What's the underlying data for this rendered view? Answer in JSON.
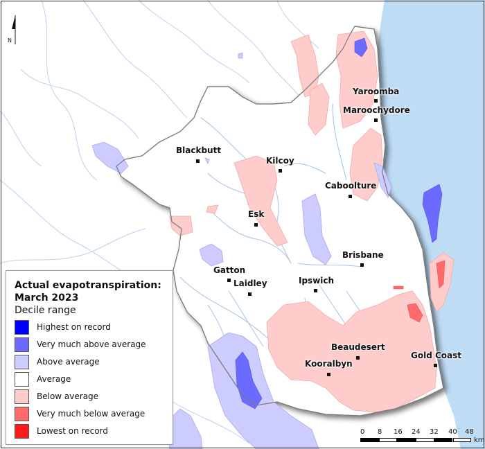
{
  "legend": {
    "title": "Actual evapotranspiration: March 2023",
    "subtitle": "Decile range",
    "items": [
      {
        "label": "Highest on record",
        "color": "#0000ff"
      },
      {
        "label": "Very much above average",
        "color": "#6b6bff"
      },
      {
        "label": "Above average",
        "color": "#ccccff"
      },
      {
        "label": "Average",
        "color": "#ffffff"
      },
      {
        "label": "Below average",
        "color": "#ffcccc"
      },
      {
        "label": "Very much below average",
        "color": "#ff6b6b"
      },
      {
        "label": "Lowest on record",
        "color": "#ff1a1a"
      }
    ]
  },
  "places": [
    {
      "name": "Yaroomba"
    },
    {
      "name": "Maroochydore"
    },
    {
      "name": "Blackbutt"
    },
    {
      "name": "Kilcoy"
    },
    {
      "name": "Caboolture"
    },
    {
      "name": "Esk"
    },
    {
      "name": "Brisbane"
    },
    {
      "name": "Gatton"
    },
    {
      "name": "Laidley"
    },
    {
      "name": "Ipswich"
    },
    {
      "name": "Beaudesert"
    },
    {
      "name": "Gold Coast"
    },
    {
      "name": "Kooralbyn"
    }
  ],
  "north_arrow": {
    "label": "N",
    "icon": "north-arrow-icon"
  },
  "scale_bar": {
    "ticks": [
      "0",
      "8",
      "16",
      "24",
      "32",
      "40",
      "48"
    ],
    "unit": "km"
  },
  "colors": {
    "ocean": "#bfdcf5",
    "river": "#a9c7e6",
    "boundary": "#777777"
  }
}
